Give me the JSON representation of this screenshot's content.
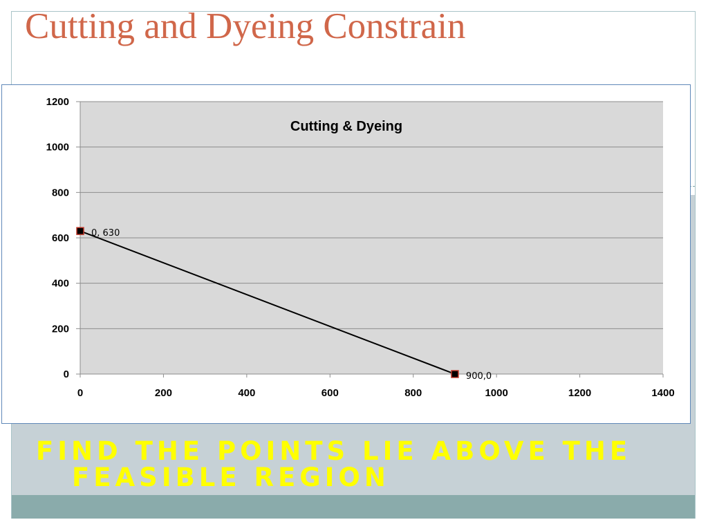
{
  "slide": {
    "title": "Cutting and Dyeing Constrain",
    "subtitle": "Find the points lie above the feasible region"
  },
  "colors": {
    "title": "#d0674a",
    "subtitle": "#ffff00",
    "plot_background": "#d9d9d9",
    "band": "#c6d1d6",
    "strip": "#8aabab",
    "marker_fill": "#000000",
    "marker_border": "#c0392b"
  },
  "chart_data": {
    "type": "scatter",
    "title": "Cutting & Dyeing",
    "xlabel": "",
    "ylabel": "",
    "xlim": [
      0,
      1400
    ],
    "ylim": [
      0,
      1200
    ],
    "xticks": [
      0,
      200,
      400,
      600,
      800,
      1000,
      1200,
      1400
    ],
    "yticks": [
      0,
      200,
      400,
      600,
      800,
      1000,
      1200
    ],
    "grid": "horizontal",
    "legend": "none",
    "lines_connect_points": true,
    "series": [
      {
        "points": [
          {
            "x": 0,
            "y": 630,
            "label": "0, 630"
          },
          {
            "x": 900,
            "y": 0,
            "label": "900,0"
          }
        ]
      }
    ]
  }
}
